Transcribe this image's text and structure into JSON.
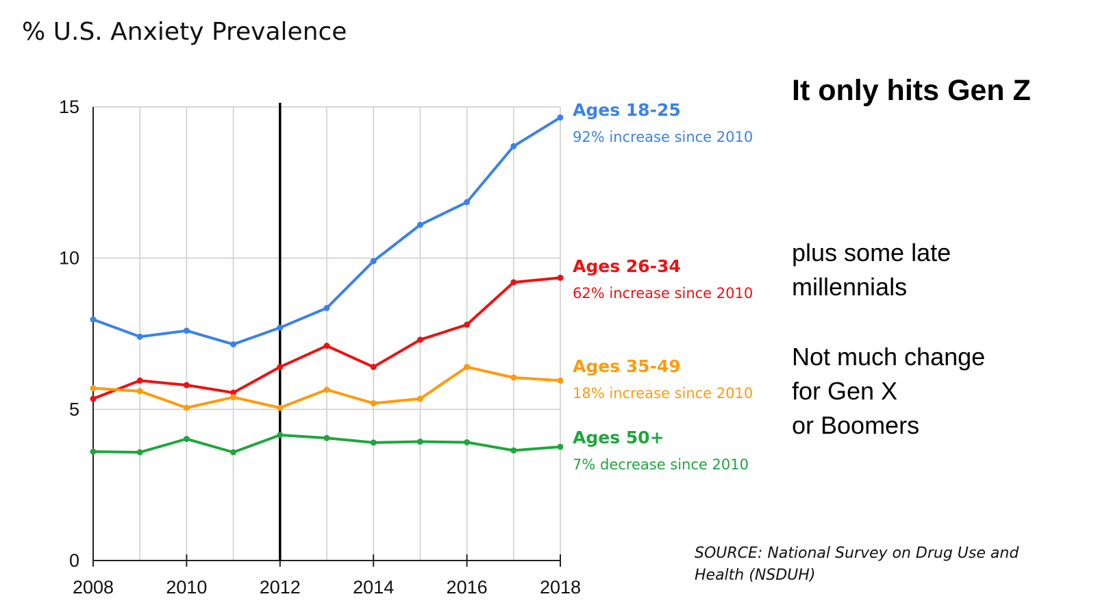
{
  "chart_data": {
    "type": "line",
    "title": "% U.S. Anxiety Prevalence",
    "xlabel": "",
    "ylabel": "",
    "x": [
      2008,
      2009,
      2010,
      2011,
      2012,
      2013,
      2014,
      2015,
      2016,
      2017,
      2018
    ],
    "xticks": [
      2008,
      2010,
      2012,
      2014,
      2016,
      2018
    ],
    "yticks": [
      0,
      5,
      10,
      15
    ],
    "xlim": [
      2008,
      2018
    ],
    "ylim": [
      0,
      15
    ],
    "grid": true,
    "vertical_marker_x": 2012,
    "series": [
      {
        "name": "Ages 18-25",
        "note": "92% increase since 2010",
        "color": "#3b82e8",
        "values": [
          7.97,
          7.4,
          7.6,
          7.15,
          7.7,
          8.35,
          9.9,
          11.1,
          11.85,
          13.7,
          14.65
        ]
      },
      {
        "name": "Ages 26-34",
        "note": "62% increase since 2010",
        "color": "#ee1111",
        "values": [
          5.35,
          5.95,
          5.8,
          5.55,
          6.4,
          7.1,
          6.4,
          7.3,
          7.8,
          9.2,
          9.35
        ]
      },
      {
        "name": "Ages 35-49",
        "note": "18% increase since 2010",
        "color": "#ff9a0d",
        "values": [
          5.7,
          5.6,
          5.05,
          5.4,
          5.05,
          5.65,
          5.2,
          5.35,
          6.4,
          6.05,
          5.95
        ]
      },
      {
        "name": "Ages 50+",
        "note": "7% decrease since 2010",
        "color": "#1fa63d",
        "values": [
          3.6,
          3.58,
          4.02,
          3.58,
          4.15,
          4.05,
          3.9,
          3.93,
          3.91,
          3.64,
          3.76
        ]
      }
    ]
  },
  "annotations": {
    "headline": "It only hits Gen Z",
    "millennials_note": [
      "plus some late",
      "millennials"
    ],
    "genx_note": [
      "Not much change",
      "for Gen X",
      "or Boomers"
    ],
    "source": "SOURCE: National Survey on Drug Use and Health (NSDUH)"
  }
}
